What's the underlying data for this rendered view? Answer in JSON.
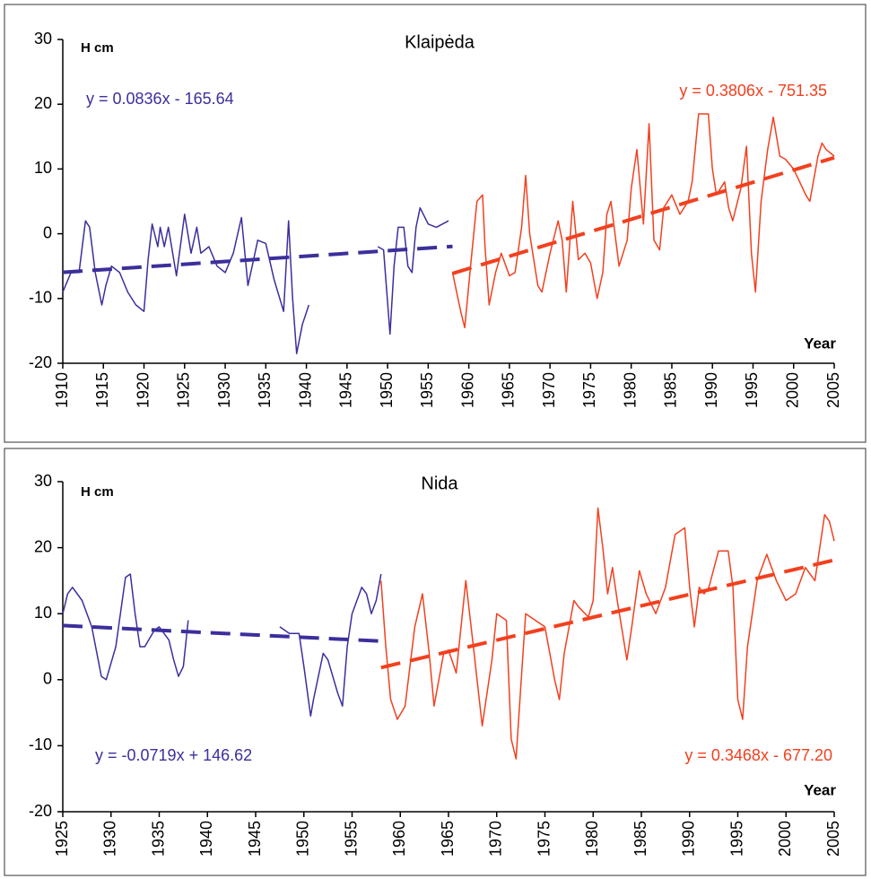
{
  "chart_data": [
    {
      "type": "line",
      "title": "Klaipėda",
      "y_label": "H cm",
      "x_label": "Year",
      "xlim": [
        1910,
        2005
      ],
      "xticks": [
        1910,
        1915,
        1920,
        1925,
        1930,
        1935,
        1940,
        1945,
        1950,
        1955,
        1960,
        1965,
        1970,
        1975,
        1980,
        1985,
        1990,
        1995,
        2000,
        2005
      ],
      "ylim": [
        -20,
        30
      ],
      "yticks": [
        -20,
        -10,
        0,
        10,
        20,
        30
      ],
      "annotations": [
        {
          "text": "y = 0.0836x - 165.64",
          "color": "#3b2f9c"
        },
        {
          "text": "y = 0.3806x - 751.35",
          "color": "#f2401f"
        }
      ],
      "series": [
        {
          "color": "#3b2f9c",
          "x": [
            1910,
            1911,
            1912,
            1912.8,
            1913.3,
            1914,
            1914.8,
            1915.3,
            1916,
            1917,
            1918,
            1919,
            1920,
            1920.5,
            1921,
            1921.7,
            1922,
            1922.5,
            1923,
            1924,
            1925,
            1925.8,
            1926.5,
            1927,
            1928,
            1929,
            1930,
            1931,
            1932,
            1932.8,
            1933.5,
            1934,
            1935,
            1936,
            1937.2,
            1937.8,
            1938.3,
            1938.8,
            1939.5,
            1940.3,
            1945,
            1948.8,
            1949.5,
            1950.3,
            1950.8,
            1951.3,
            1952,
            1952.5,
            1953,
            1953.5,
            1954,
            1955,
            1956,
            1957.5
          ],
          "values": [
            -9,
            -6,
            -6,
            2,
            1,
            -6,
            -11,
            -8,
            -5,
            -6,
            -9,
            -11,
            -12,
            -4,
            1.5,
            -2,
            1,
            -2,
            1,
            -6.5,
            3,
            -3,
            1,
            -3,
            -2,
            -5,
            -6,
            -3,
            2.5,
            -8,
            -4,
            -1,
            -1.5,
            -7,
            -12,
            2,
            -10,
            -18.5,
            -14,
            -11,
            null,
            -2,
            -2.5,
            -15.5,
            -5,
            1,
            1,
            -5,
            -6,
            1,
            4,
            1.5,
            1,
            2
          ]
        },
        {
          "color": "#f2401f",
          "x": [
            1958,
            1959,
            1959.5,
            1960.3,
            1961,
            1961.7,
            1962,
            1962.5,
            1963.3,
            1964,
            1965,
            1965.7,
            1966.5,
            1967,
            1967.5,
            1968.5,
            1969,
            1970,
            1971,
            1971.5,
            1972,
            1972.8,
            1973.5,
            1974.3,
            1975,
            1975.8,
            1976.5,
            1977,
            1977.5,
            1978.5,
            1979.5,
            1980,
            1980.7,
            1981.5,
            1982.2,
            1982.8,
            1983.5,
            1984,
            1985,
            1986,
            1987,
            1987.5,
            1988.3,
            1989.5,
            1990,
            1990.5,
            1991.5,
            1992,
            1992.5,
            1993.5,
            1994.2,
            1994.8,
            1995.3,
            1996,
            1996.8,
            1997.5,
            1998.3,
            1999,
            2000,
            2001.5,
            2002,
            2003,
            2003.5,
            2004,
            2005
          ],
          "values": [
            -6,
            -12,
            -14.5,
            -4,
            5,
            6,
            -2,
            -11,
            -6,
            -3,
            -6.5,
            -6,
            1,
            9,
            0,
            -8,
            -9,
            -3,
            2,
            -1,
            -9,
            5,
            -4,
            -3,
            -4.5,
            -10,
            -6,
            3,
            5,
            -5,
            -1,
            7,
            13,
            1.5,
            17,
            -1,
            -2.5,
            4,
            6,
            3,
            5,
            8,
            18.5,
            18.5,
            10,
            6,
            8,
            4,
            2,
            7,
            13.5,
            -3,
            -9,
            5,
            13,
            18,
            12,
            11.5,
            10,
            6,
            5,
            12,
            14,
            13,
            12
          ]
        },
        {
          "color": "#3b2f9c",
          "dashed": true,
          "x": [
            1910,
            1958
          ],
          "values": [
            -5.96,
            -1.95
          ]
        },
        {
          "color": "#f2401f",
          "dashed": true,
          "x": [
            1958,
            2005
          ],
          "values": [
            -6.14,
            11.75
          ]
        }
      ]
    },
    {
      "type": "line",
      "title": "Nida",
      "y_label": "H cm",
      "x_label": "Year",
      "xlim": [
        1925,
        2005
      ],
      "xticks": [
        1925,
        1930,
        1935,
        1940,
        1945,
        1950,
        1955,
        1960,
        1965,
        1970,
        1975,
        1980,
        1985,
        1990,
        1995,
        2000,
        2005
      ],
      "ylim": [
        -20,
        30
      ],
      "yticks": [
        -20,
        -10,
        0,
        10,
        20,
        30
      ],
      "annotations": [
        {
          "text": "y = -0.0719x + 146.62",
          "color": "#3b2f9c"
        },
        {
          "text": "y = 0.3468x - 677.20",
          "color": "#f2401f"
        }
      ],
      "series": [
        {
          "color": "#3b2f9c",
          "x": [
            1925,
            1925.5,
            1926,
            1927,
            1928,
            1929,
            1929.5,
            1930.5,
            1931.5,
            1932,
            1932.5,
            1933,
            1933.5,
            1934.5,
            1935,
            1936,
            1936.5,
            1937,
            1937.5,
            1938,
            1943,
            1947.5,
            1948.5,
            1949.5,
            1950,
            1950.7,
            1951,
            1952,
            1952.5,
            1953.5,
            1954,
            1954.5,
            1955,
            1956,
            1956.5,
            1957,
            1957.5,
            1958
          ],
          "values": [
            10,
            13,
            14,
            12,
            8,
            0.5,
            0,
            5,
            15.5,
            16,
            10,
            5,
            5,
            7.5,
            8,
            6,
            3,
            0.5,
            2,
            9,
            null,
            8,
            7,
            7,
            2,
            -5.5,
            -3,
            4,
            3,
            -2,
            -4,
            5,
            10,
            14,
            13,
            10,
            12,
            16
          ]
        },
        {
          "color": "#f2401f",
          "x": [
            1958,
            1958.5,
            1959,
            1959.7,
            1960.5,
            1961.5,
            1962.3,
            1963,
            1963.5,
            1964.5,
            1965,
            1965.8,
            1966.8,
            1967.5,
            1968.5,
            1969.5,
            1970,
            1971,
            1971.5,
            1972,
            1972.5,
            1973,
            1974,
            1975,
            1976,
            1976.5,
            1977,
            1978,
            1978.5,
            1979.5,
            1980,
            1980.5,
            1981,
            1981.5,
            1982,
            1982.5,
            1983.5,
            1984,
            1984.8,
            1985.5,
            1986.5,
            1987.5,
            1988.5,
            1989.5,
            1990,
            1990.5,
            1991,
            1991.5,
            1992,
            1993,
            1994,
            1994.5,
            1995,
            1995.5,
            1996,
            1997,
            1998,
            1999,
            2000,
            2001,
            2002,
            2003,
            2003.5,
            2004,
            2004.5,
            2005
          ],
          "values": [
            15,
            5,
            -3,
            -6,
            -4,
            8,
            13,
            4,
            -4,
            4,
            4.5,
            1,
            15,
            6,
            -7,
            3,
            10,
            9,
            -9,
            -12,
            -1,
            10,
            9,
            8,
            0,
            -3,
            4,
            12,
            11,
            9.5,
            12,
            26,
            20,
            13,
            17,
            12,
            3,
            8,
            16.5,
            13,
            10,
            14,
            22,
            23,
            14,
            8,
            14,
            13,
            14,
            19.5,
            19.5,
            14,
            -3,
            -6,
            5,
            15,
            19,
            15,
            12,
            13,
            17,
            15,
            20,
            25,
            24,
            21
          ]
        },
        {
          "color": "#3b2f9c",
          "dashed": true,
          "x": [
            1925,
            1958
          ],
          "values": [
            8.21,
            5.84
          ]
        },
        {
          "color": "#f2401f",
          "dashed": true,
          "x": [
            1958,
            2005
          ],
          "values": [
            1.83,
            18.13
          ]
        }
      ]
    }
  ]
}
